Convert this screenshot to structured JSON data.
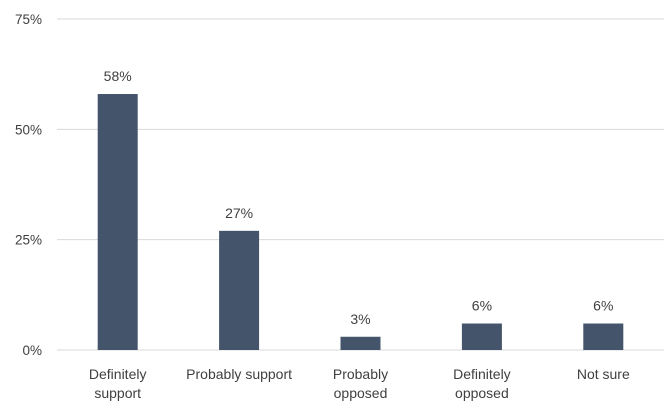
{
  "chart_data": {
    "type": "bar",
    "title": "",
    "xlabel": "",
    "ylabel": "",
    "categories": [
      [
        "Definitely",
        "support"
      ],
      [
        "Probably support"
      ],
      [
        "Probably",
        "opposed"
      ],
      [
        "Definitely",
        "opposed"
      ],
      [
        "Not sure"
      ]
    ],
    "values": [
      58,
      27,
      3,
      6,
      6
    ],
    "value_labels": [
      "58%",
      "27%",
      "3%",
      "6%",
      "6%"
    ],
    "ylim": [
      0,
      75
    ],
    "yticks": [
      0,
      25,
      50,
      75
    ],
    "ytick_labels": [
      "0%",
      "25%",
      "50%",
      "75%"
    ],
    "grid": true,
    "legend": "none",
    "colors": {
      "bar": "#44546a",
      "grid": "#d9d9d9",
      "text": "#404040"
    }
  }
}
